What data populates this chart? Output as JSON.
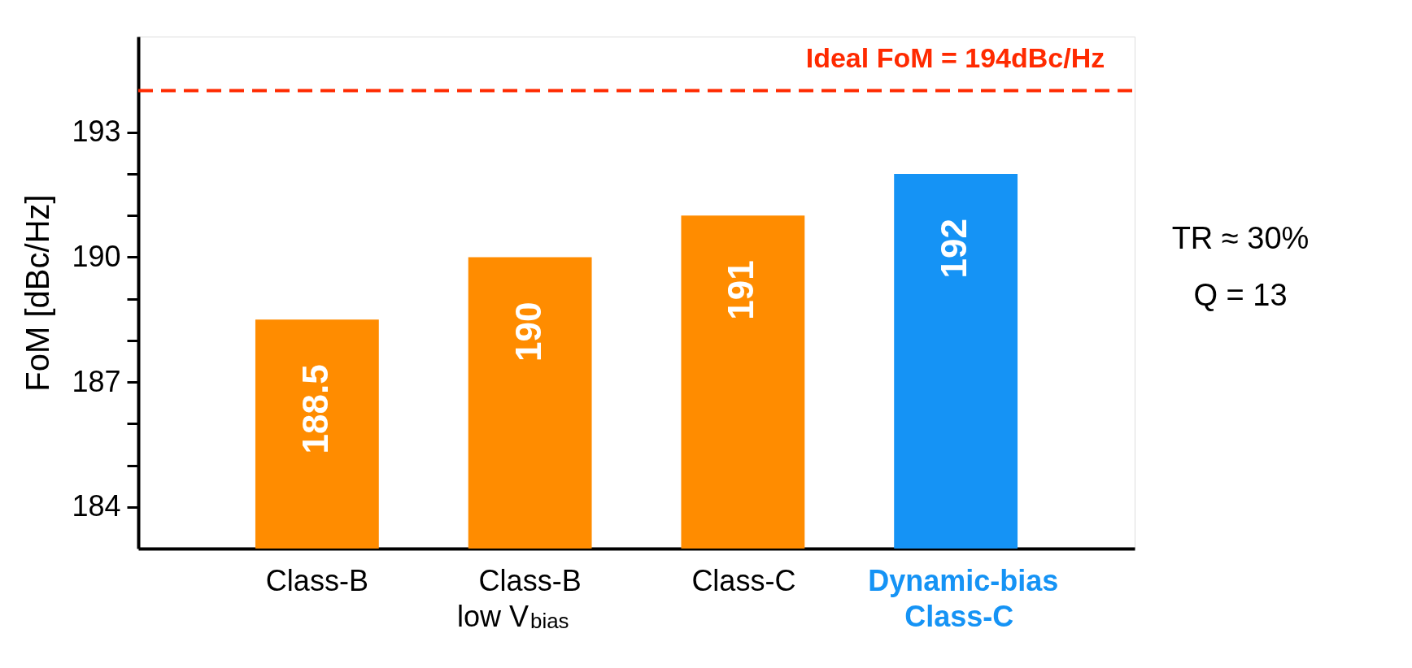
{
  "chart_data": {
    "type": "bar",
    "ylabel": "FoM [dBc/Hz]",
    "categories": [
      "Class-B",
      "Class-B\nlow V$_{bias}$",
      "Class-C",
      "Dynamic-bias\nClass-C"
    ],
    "values": [
      188.5,
      190,
      191,
      192
    ],
    "colors": [
      "#ff8c00",
      "#ff8c00",
      "#ff8c00",
      "#1593f5"
    ],
    "data_labels": true,
    "ylim": [
      183,
      195.3
    ],
    "yticks": [
      184,
      {
        "value": 185,
        "label": null
      },
      {
        "value": 186,
        "label": null
      },
      187,
      {
        "value": 188,
        "label": null
      },
      {
        "value": 189,
        "label": null
      },
      190,
      {
        "value": 191,
        "label": null
      },
      {
        "value": 192,
        "label": null
      },
      193
    ],
    "ref_lines": [
      {
        "axis": "y",
        "value": 194,
        "label": "Ideal FoM = 194dBc/Hz",
        "color": "#ff2a00",
        "line_style": "dashed"
      }
    ],
    "annotations": [
      "TR ≈ 30%",
      "Q = 13"
    ],
    "grid": false,
    "legend": false
  }
}
